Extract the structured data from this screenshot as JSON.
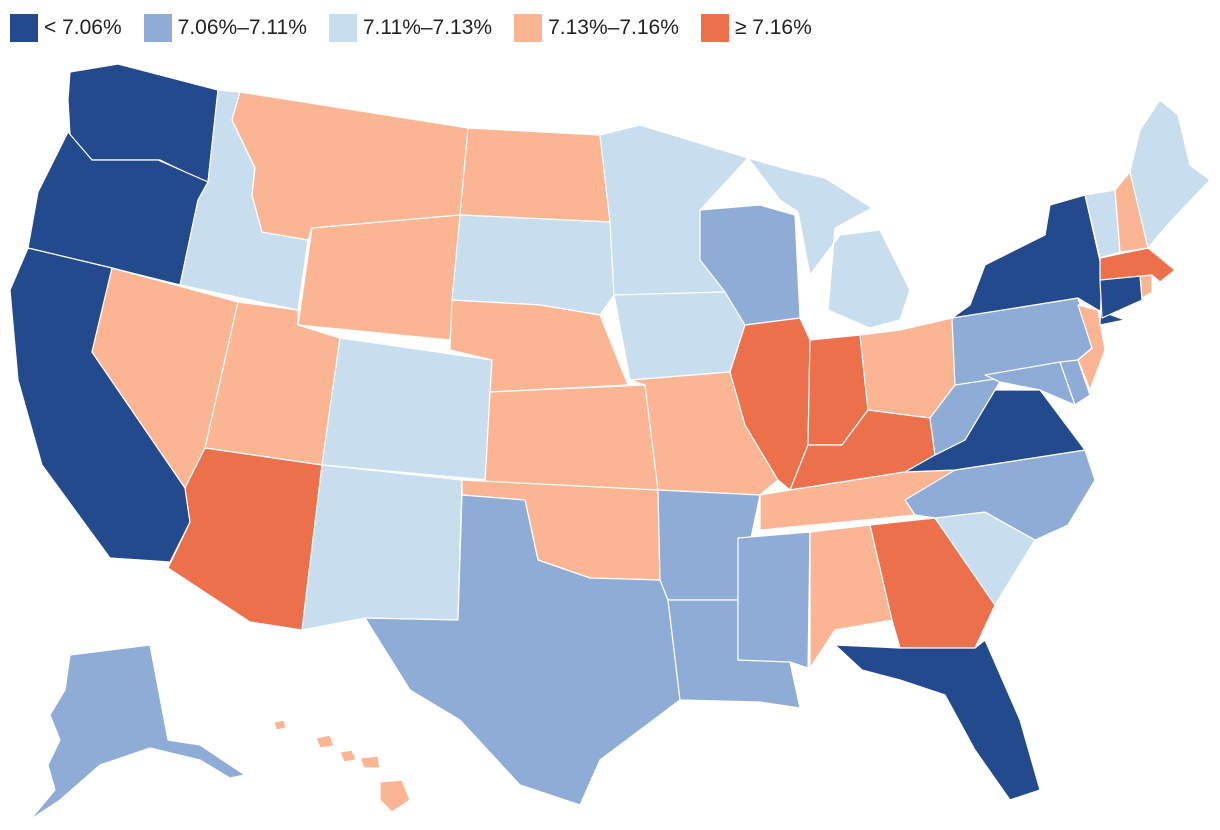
{
  "legend": [
    {
      "label": "< 7.06%",
      "color": "#234a8c"
    },
    {
      "label": "7.06%–7.11%",
      "color": "#8eacd5"
    },
    {
      "label": "7.11%–7.13%",
      "color": "#c8ddee"
    },
    {
      "label": "7.13%–7.16%",
      "color": "#fbb592"
    },
    {
      "label": "≥ 7.16%",
      "color": "#ec704b"
    }
  ],
  "states": {
    "WA": 0,
    "OR": 0,
    "CA": 0,
    "NY": 0,
    "CT": 0,
    "DE": 1,
    "VA": 0,
    "FL": 0,
    "AK": 1,
    "WI": 1,
    "PA": 1,
    "MD": 1,
    "WV": 1,
    "NC": 1,
    "TX": 1,
    "AR": 1,
    "LA": 1,
    "MS": 1,
    "ID": 2,
    "SD": 2,
    "MN": 2,
    "IA": 2,
    "MI": 2,
    "CO": 2,
    "NM": 2,
    "SC": 2,
    "ME": 2,
    "VT": 2,
    "MT": 3,
    "ND": 3,
    "WY": 3,
    "NE": 3,
    "NV": 3,
    "UT": 3,
    "KS": 3,
    "MO": 3,
    "OK": 3,
    "OH": 3,
    "TN": 3,
    "AL": 3,
    "NH": 3,
    "NJ": 3,
    "RI": 3,
    "HI": 3,
    "AZ": 4,
    "IL": 4,
    "IN": 4,
    "KY": 4,
    "GA": 4,
    "MA": 4
  }
}
